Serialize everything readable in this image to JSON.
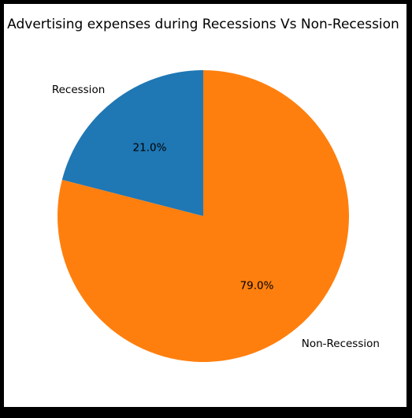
{
  "chart_data": {
    "type": "pie",
    "title": "Advertising expenses during Recessions Vs Non-Recession",
    "slices": [
      {
        "label": "Recession",
        "value": 21.0,
        "pct_label": "21.0%",
        "color": "#1f77b4"
      },
      {
        "label": "Non-Recession",
        "value": 79.0,
        "pct_label": "79.0%",
        "color": "#ff7f0e"
      }
    ],
    "start_angle_deg": 90,
    "direction": "counterclockwise",
    "legend": false
  }
}
